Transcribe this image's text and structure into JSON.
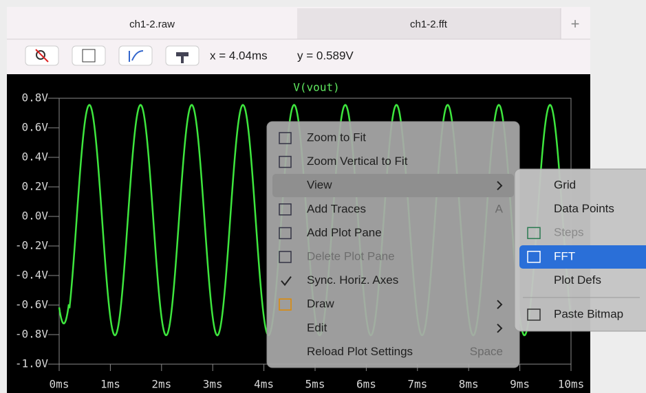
{
  "tabs": [
    "ch1-2.raw",
    "ch1-2.fft"
  ],
  "new_tab": "+",
  "toolbar": {
    "x_readout": "x = 4.04ms",
    "y_readout": "y = 0.589V"
  },
  "plot": {
    "title": "V(vout)",
    "yticks": [
      "0.8V",
      "0.6V",
      "0.4V",
      "0.2V",
      "0.0V",
      "-0.2V",
      "-0.4V",
      "-0.6V",
      "-0.8V",
      "-1.0V"
    ],
    "xticks": [
      "0ms",
      "1ms",
      "2ms",
      "3ms",
      "4ms",
      "5ms",
      "6ms",
      "7ms",
      "8ms",
      "9ms",
      "10ms"
    ]
  },
  "context_menu": {
    "items": [
      {
        "label": "Zoom to Fit"
      },
      {
        "label": "Zoom Vertical to Fit"
      },
      {
        "label": "View"
      },
      {
        "label": "Add Traces",
        "shortcut": "A"
      },
      {
        "label": "Add Plot Pane"
      },
      {
        "label": "Delete Plot Pane"
      },
      {
        "label": "Sync. Horiz. Axes"
      },
      {
        "label": "Draw"
      },
      {
        "label": "Edit"
      },
      {
        "label": "Reload Plot Settings",
        "shortcut": "Space"
      }
    ]
  },
  "submenu": {
    "items": [
      {
        "label": "Grid"
      },
      {
        "label": "Data Points"
      },
      {
        "label": "Steps"
      },
      {
        "label": "FFT"
      },
      {
        "label": "Plot Defs"
      },
      {
        "label": "Paste Bitmap"
      }
    ]
  }
}
